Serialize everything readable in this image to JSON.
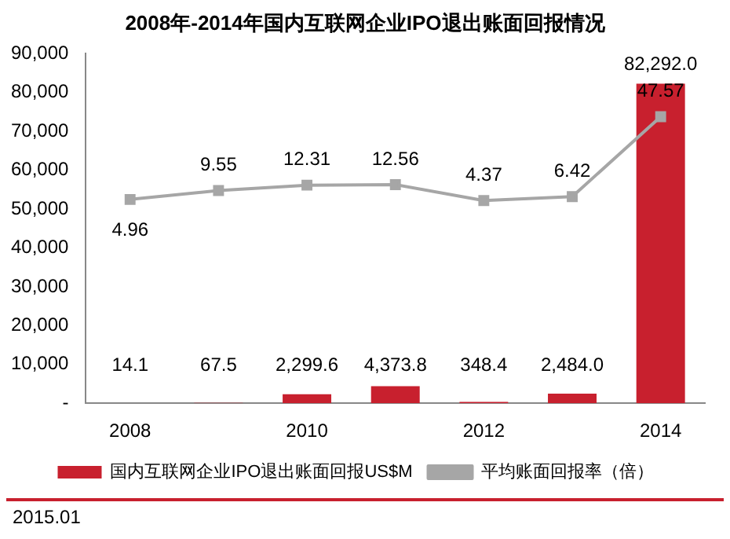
{
  "chart_data": {
    "type": "bar",
    "title": "2008年-2014年国内互联网企业IPO退出账面回报情况",
    "categories": [
      "2008",
      null,
      "2010",
      null,
      "2012",
      null,
      "2014"
    ],
    "series": [
      {
        "name": "国内互联网企业IPO退出账面回报US$M",
        "color": "#c8202e",
        "values": [
          14.1,
          67.5,
          2299.6,
          4373.8,
          348.4,
          2484.0,
          82292.0
        ],
        "value_labels": [
          "14.1",
          "67.5",
          "2,299.6",
          "4,373.8",
          "348.4",
          "2,484.0",
          "82,292.0"
        ]
      },
      {
        "name": "平均账面回报率（倍）",
        "type": "line",
        "axis": "y2",
        "color": "#a6a6a6",
        "values": [
          4.96,
          9.55,
          12.31,
          12.56,
          4.37,
          6.42,
          47.57
        ],
        "value_labels": [
          "4.96",
          "9.55",
          "12.31",
          "12.56",
          "4.37",
          "6.42",
          "47.57"
        ]
      }
    ],
    "ylim": [
      0,
      90000
    ],
    "yticks": [
      {
        "value": 0,
        "label": "-"
      },
      {
        "value": 10000,
        "label": "10,000"
      },
      {
        "value": 20000,
        "label": "20,000"
      },
      {
        "value": 30000,
        "label": "30,000"
      },
      {
        "value": 40000,
        "label": "40,000"
      },
      {
        "value": 50000,
        "label": "50,000"
      },
      {
        "value": 60000,
        "label": "60,000"
      },
      {
        "value": 70000,
        "label": "70,000"
      },
      {
        "value": 80000,
        "label": "80,000"
      },
      {
        "value": 90000,
        "label": "90,000"
      }
    ],
    "y2lim": [
      -100,
      80
    ],
    "marker": "square",
    "grid": false,
    "legend": "bottom",
    "annotations": [
      "2015.01"
    ]
  }
}
